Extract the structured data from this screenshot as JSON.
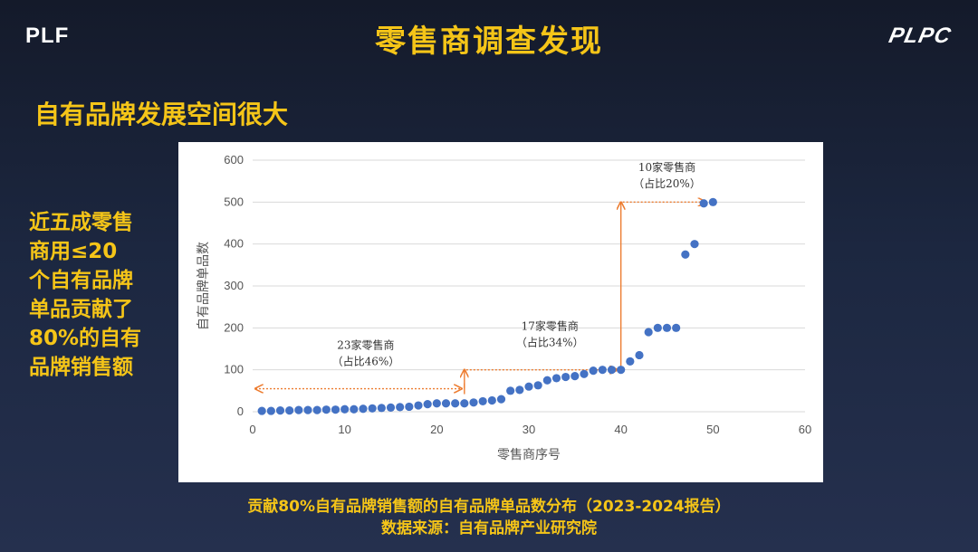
{
  "logos": {
    "left": "PLF",
    "right": "PLPC"
  },
  "title": "零售商调查发现",
  "subtitle": "自有品牌发展空间很大",
  "side_note": "近五成零售\n商用≤20\n个自有品牌\n单品贡献了\n80%的自有\n品牌销售额",
  "caption_line1": "贡献80%自有品牌销售额的自有品牌单品数分布（2023-2024报告）",
  "caption_line2": "数据来源：自有品牌产业研究院",
  "colors": {
    "accent": "#f5c518",
    "point": "#4472c4",
    "annotation": "#ed7d31"
  },
  "chart_data": {
    "type": "scatter",
    "xlabel": "零售商序号",
    "ylabel": "自有品牌单品数",
    "xlim": [
      0,
      60
    ],
    "ylim": [
      0,
      600
    ],
    "xticks": [
      0,
      10,
      20,
      30,
      40,
      50,
      60
    ],
    "yticks": [
      0,
      100,
      200,
      300,
      400,
      500,
      600
    ],
    "grid": true,
    "series": [
      {
        "x": [
          1,
          2,
          3,
          4,
          5,
          6,
          7,
          8,
          9,
          10,
          11,
          12,
          13,
          14,
          15,
          16,
          17,
          18,
          19,
          20,
          21,
          22,
          23,
          24,
          25,
          26,
          27,
          28,
          29,
          30,
          31,
          32,
          33,
          34,
          35,
          36,
          37,
          38,
          39,
          40,
          41,
          42,
          43,
          44,
          45,
          46,
          47,
          48,
          49,
          50
        ],
        "y": [
          2,
          2,
          3,
          3,
          4,
          4,
          4,
          5,
          5,
          6,
          6,
          7,
          8,
          9,
          10,
          11,
          12,
          15,
          18,
          20,
          20,
          20,
          20,
          22,
          25,
          27,
          30,
          50,
          52,
          60,
          63,
          75,
          80,
          83,
          85,
          90,
          98,
          100,
          100,
          100,
          120,
          135,
          190,
          200,
          200,
          200,
          375,
          400,
          497,
          500
        ]
      }
    ],
    "annotations": [
      {
        "label": "23家零售商",
        "share": "（占比46%）",
        "x_from": 0,
        "x_to": 23,
        "y_level": 55
      },
      {
        "label": "17家零售商",
        "share": "（占比34%）",
        "x_from": 23,
        "x_to": 40,
        "y_level": 100
      },
      {
        "label": "10家零售商",
        "share": "（占比20%）",
        "x_from": 40,
        "x_to": 50,
        "y_level": 500
      }
    ]
  }
}
